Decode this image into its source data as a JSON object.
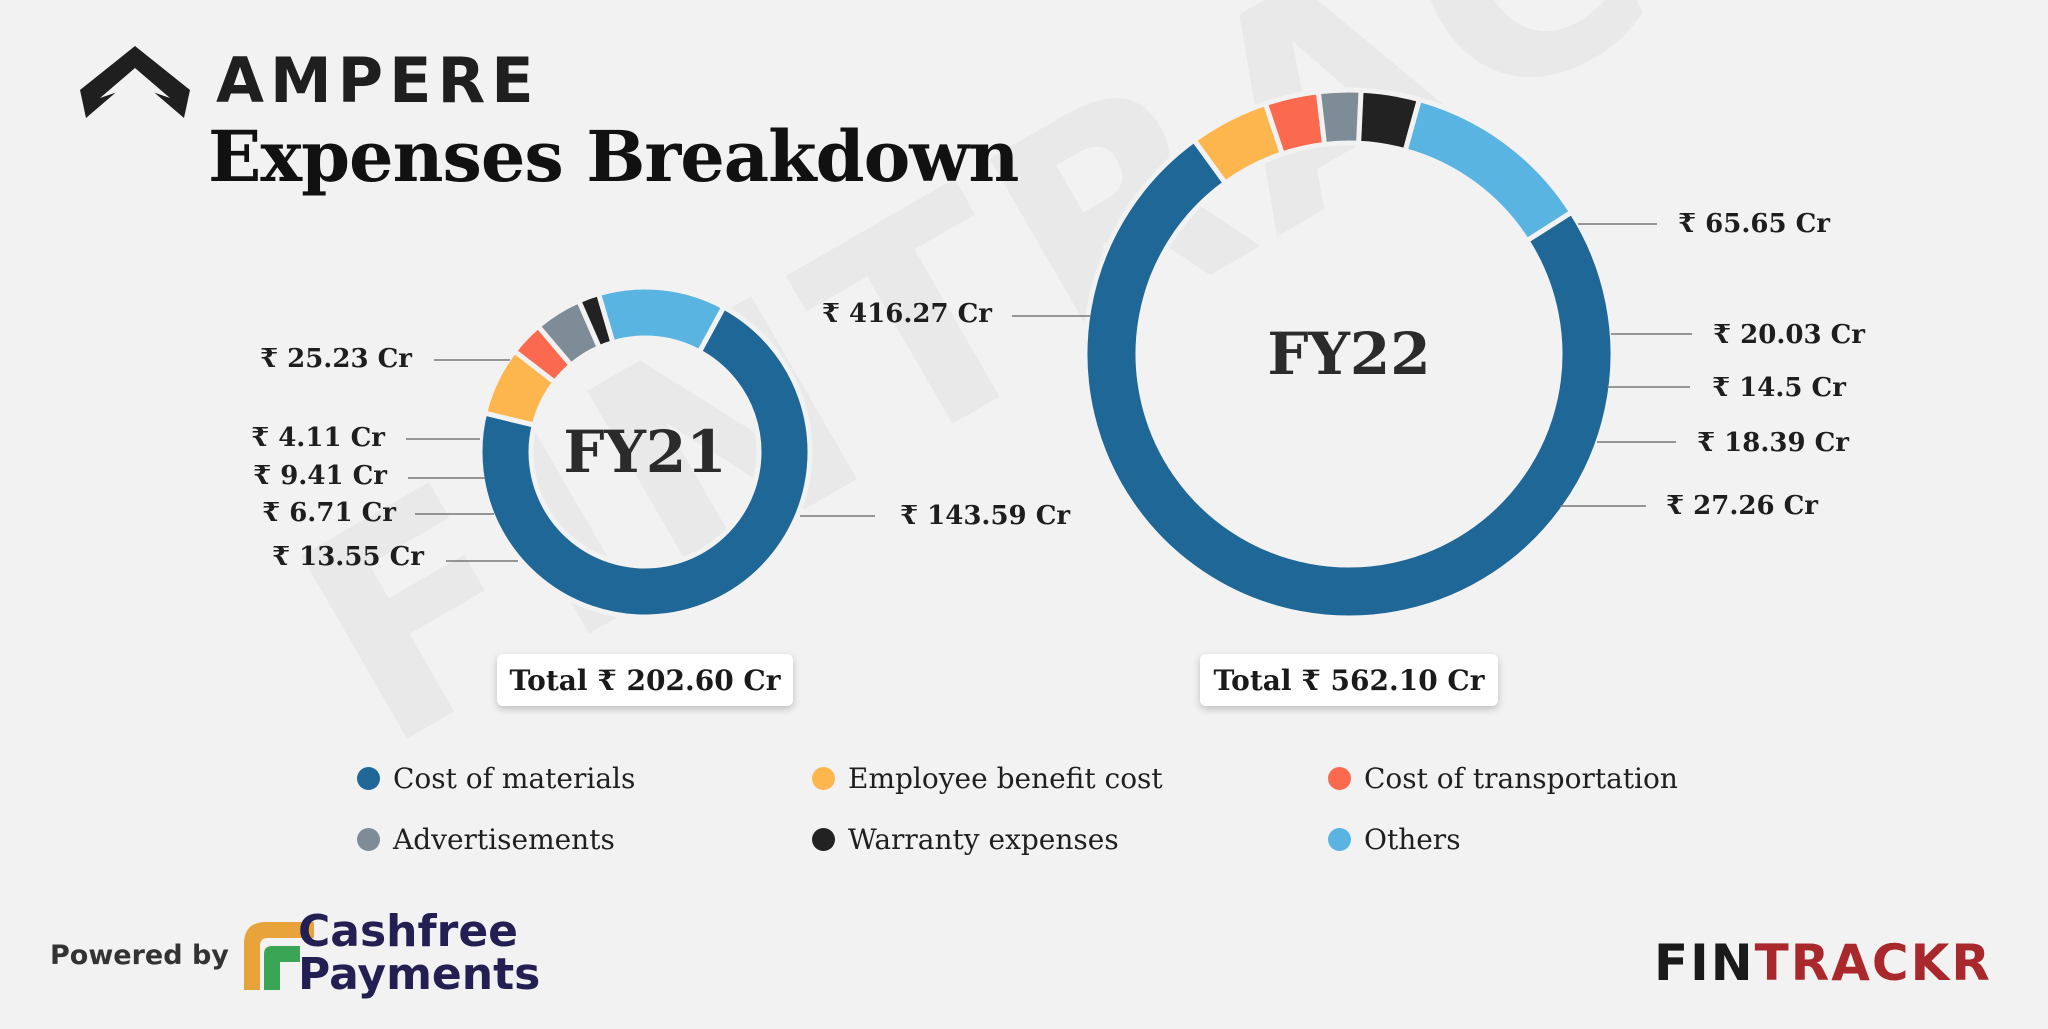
{
  "brand": {
    "name": "AMPERE",
    "logo_icon": "chevron-up-logo"
  },
  "page": {
    "title": "Expenses Breakdown"
  },
  "colors": {
    "Cost of materials": "#1e6796",
    "Employee benefit cost": "#fdb64e",
    "Cost of transportation": "#fb6a4f",
    "Advertisements": "#7d8c96",
    "Warranty expenses": "#222222",
    "Others": "#5ab4e1"
  },
  "chart_data": [
    {
      "type": "pie",
      "subtype": "donut",
      "center_label": "FY21",
      "total_label": "Total ₹ 202.60 Cr",
      "categories": [
        "Cost of materials",
        "Employee benefit cost",
        "Cost of transportation",
        "Advertisements",
        "Warranty expenses",
        "Others"
      ],
      "values": [
        143.59,
        13.55,
        6.71,
        9.41,
        4.11,
        25.23
      ],
      "value_labels": [
        "₹ 143.59 Cr",
        "₹ 13.55 Cr",
        "₹ 6.71 Cr",
        "₹ 9.41 Cr",
        "₹ 4.11 Cr",
        "₹ 25.23 Cr"
      ]
    },
    {
      "type": "pie",
      "subtype": "donut",
      "center_label": "FY22",
      "total_label": "Total ₹ 562.10 Cr",
      "categories": [
        "Cost of materials",
        "Employee benefit cost",
        "Cost of transportation",
        "Advertisements",
        "Warranty expenses",
        "Others"
      ],
      "values": [
        416.27,
        27.26,
        18.39,
        14.5,
        20.03,
        65.65
      ],
      "value_labels": [
        "₹ 416.27 Cr",
        "₹ 27.26 Cr",
        "₹ 18.39 Cr",
        "₹ 14.5 Cr",
        "₹ 20.03 Cr",
        "₹ 65.65 Cr"
      ]
    }
  ],
  "legend": [
    "Cost of materials",
    "Employee benefit cost",
    "Cost of transportation",
    "Advertisements",
    "Warranty expenses",
    "Others"
  ],
  "footer": {
    "powered_by": "Powered by",
    "partner_line1": "Cashfree",
    "partner_line2": "Payments",
    "watermark_brand": "FINTRACKR",
    "logo_part1": "FIN",
    "logo_part2": "TRACKR"
  }
}
